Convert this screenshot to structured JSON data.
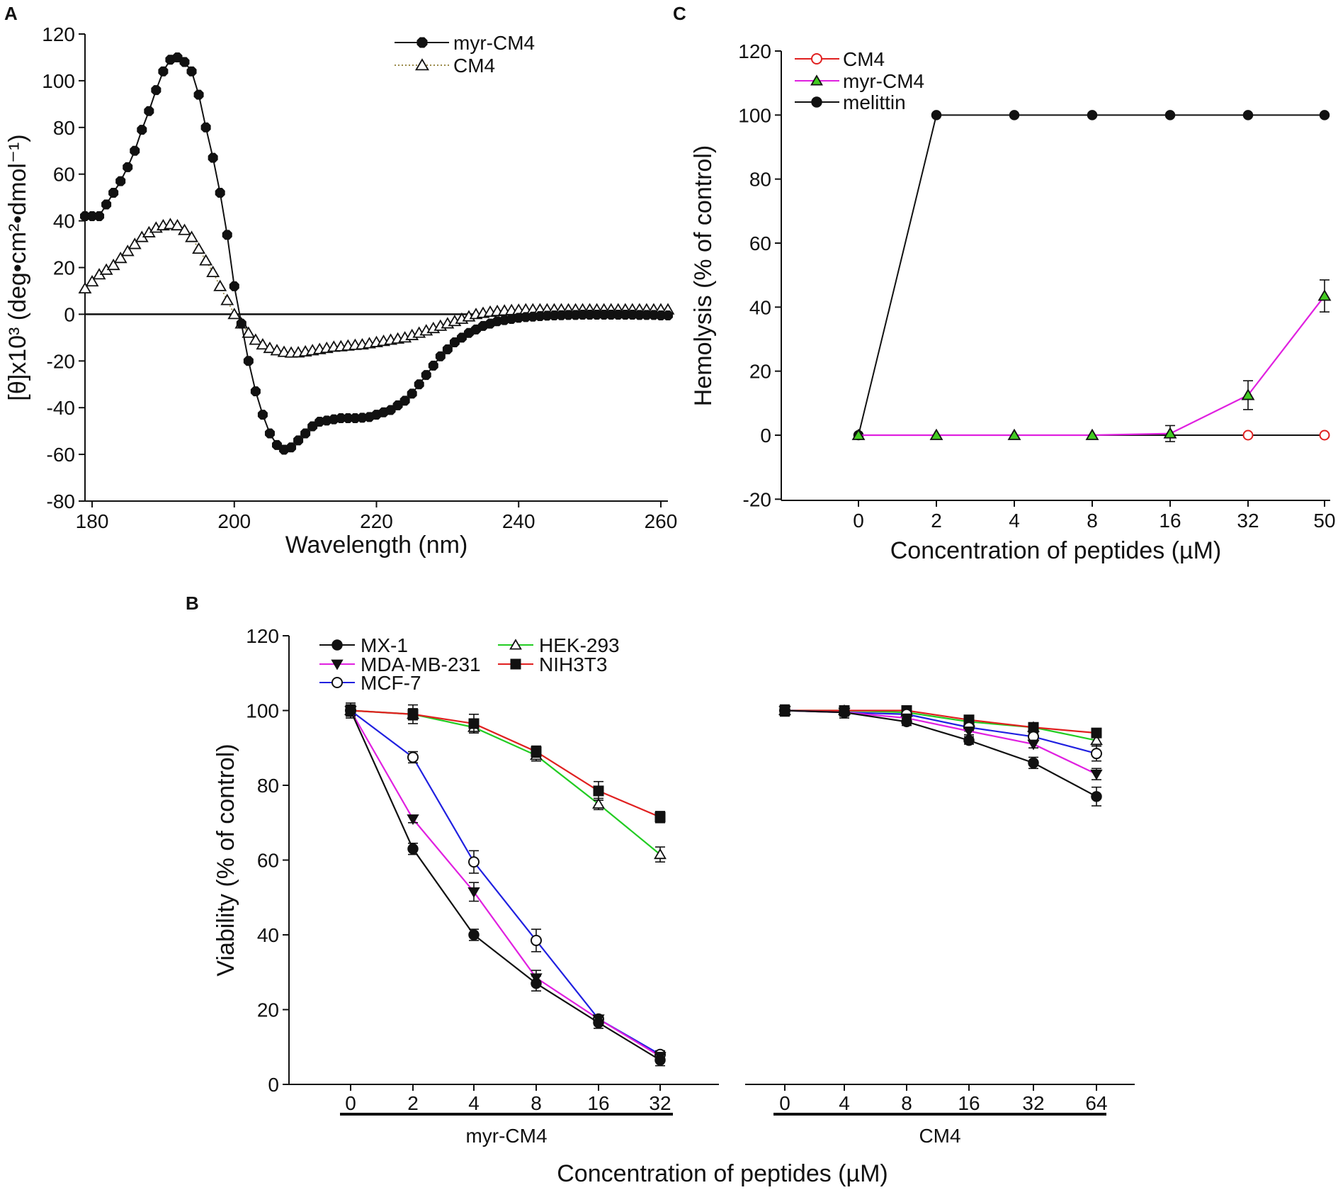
{
  "chart_data": [
    {
      "panel": "A",
      "type": "line",
      "xlabel": "Wavelength (nm)",
      "ylabel": "[θ]x10³ (deg•cm²•dmol⁻¹)",
      "xlim": [
        179,
        261
      ],
      "ylim": [
        -80,
        120
      ],
      "xticks": [
        180,
        200,
        220,
        240,
        260
      ],
      "yticks": [
        -80,
        -60,
        -40,
        -20,
        0,
        20,
        40,
        60,
        80,
        100,
        120
      ],
      "zero_line": true,
      "legend_position": "top-right",
      "series": [
        {
          "name": "myr-CM4",
          "marker": "filled-octagon",
          "color": "#111111",
          "line_style": "solid",
          "x": [
            179,
            180,
            181,
            182,
            183,
            184,
            185,
            186,
            187,
            188,
            189,
            190,
            191,
            192,
            193,
            194,
            195,
            196,
            197,
            198,
            199,
            200,
            201,
            202,
            203,
            204,
            205,
            206,
            207,
            208,
            209,
            210,
            211,
            212,
            213,
            214,
            215,
            216,
            217,
            218,
            219,
            220,
            221,
            222,
            223,
            224,
            225,
            226,
            227,
            228,
            229,
            230,
            231,
            232,
            233,
            234,
            235,
            236,
            237,
            238,
            239,
            240,
            241,
            242,
            243,
            244,
            245,
            246,
            247,
            248,
            249,
            250,
            251,
            252,
            253,
            254,
            255,
            256,
            257,
            258,
            259,
            260,
            261
          ],
          "y": [
            42,
            42,
            42,
            47,
            52,
            57,
            63,
            70,
            79,
            87,
            96,
            104,
            109,
            110,
            108,
            104,
            94,
            80,
            67,
            52,
            34,
            12,
            -4,
            -20,
            -33,
            -43,
            -51,
            -56,
            -58,
            -57,
            -54,
            -51,
            -48,
            -46,
            -45.5,
            -45,
            -44.5,
            -44.5,
            -44.5,
            -44.3,
            -44,
            -43,
            -42,
            -41,
            -39,
            -37,
            -34,
            -30,
            -26,
            -22,
            -18,
            -15,
            -12,
            -10,
            -8,
            -6.5,
            -5,
            -4,
            -3,
            -2.5,
            -2,
            -1.5,
            -1.2,
            -1,
            -0.8,
            -0.6,
            -0.5,
            -0.4,
            -0.3,
            -0.3,
            -0.2,
            -0.2,
            -0.2,
            -0.2,
            -0.2,
            -0.2,
            -0.2,
            -0.2,
            -0.3,
            -0.3,
            -0.3,
            -0.5,
            -0.5
          ]
        },
        {
          "name": "CM4",
          "marker": "open-triangle",
          "color": "#111111",
          "line_style": "dotted",
          "line_color": "#9a8a4a",
          "x": [
            179,
            180,
            181,
            182,
            183,
            184,
            185,
            186,
            187,
            188,
            189,
            190,
            191,
            192,
            193,
            194,
            195,
            196,
            197,
            198,
            199,
            200,
            201,
            202,
            203,
            204,
            205,
            206,
            207,
            208,
            209,
            210,
            211,
            212,
            213,
            214,
            215,
            216,
            217,
            218,
            219,
            220,
            221,
            222,
            223,
            224,
            225,
            226,
            227,
            228,
            229,
            230,
            231,
            232,
            233,
            234,
            235,
            236,
            237,
            238,
            239,
            240,
            241,
            242,
            243,
            244,
            245,
            246,
            247,
            248,
            249,
            250,
            251,
            252,
            253,
            254,
            255,
            256,
            257,
            258,
            259,
            260,
            261
          ],
          "y": [
            11,
            14,
            17,
            19,
            21,
            24,
            27,
            30,
            33,
            35,
            37,
            38,
            38.5,
            38,
            36,
            33,
            28,
            23,
            18,
            12,
            6,
            0,
            -4,
            -8,
            -11,
            -13,
            -14.5,
            -15.5,
            -16.2,
            -16.5,
            -16.4,
            -16,
            -15.5,
            -15,
            -14.5,
            -14,
            -13.8,
            -13.5,
            -13.2,
            -13,
            -12.5,
            -12,
            -11.5,
            -11,
            -10.5,
            -10,
            -9,
            -8,
            -7,
            -6,
            -5,
            -4,
            -3,
            -2,
            -1,
            0,
            0.5,
            1,
            1.3,
            1.5,
            1.7,
            1.8,
            2,
            2,
            2,
            2,
            2,
            2,
            2,
            2,
            2,
            2,
            2,
            2,
            2,
            2,
            2,
            2,
            2,
            2,
            2,
            2,
            2
          ]
        }
      ]
    },
    {
      "panel": "C",
      "type": "line",
      "xlabel": "Concentration of peptides (µM)",
      "ylabel": "Hemolysis (% of control)",
      "categories": [
        "0",
        "2",
        "4",
        "8",
        "16",
        "32",
        "50"
      ],
      "ylim": [
        -20,
        120
      ],
      "yticks": [
        -20,
        0,
        20,
        40,
        60,
        80,
        100,
        120
      ],
      "legend_position": "top-left",
      "series": [
        {
          "name": "CM4",
          "marker": "open-circle",
          "color": "#e02020",
          "line_color": "#111111",
          "values": [
            0,
            0,
            0,
            0,
            0,
            0,
            0
          ],
          "errors": [
            0,
            0,
            0,
            0,
            0,
            0,
            0
          ]
        },
        {
          "name": "myr-CM4",
          "marker": "filled-triangle",
          "color": "#e020e0",
          "marker_fill": "#44cc22",
          "values": [
            0,
            0,
            0,
            0,
            0.5,
            12.5,
            43.5
          ],
          "errors": [
            0,
            0,
            0,
            0,
            2.5,
            4.5,
            5
          ]
        },
        {
          "name": "melittin",
          "marker": "filled-circle",
          "color": "#111111",
          "values": [
            0,
            100,
            100,
            100,
            100,
            100,
            100
          ],
          "errors": [
            0,
            0,
            0,
            0,
            0,
            0,
            0
          ]
        }
      ]
    },
    {
      "panel": "B",
      "type": "line",
      "xlabel": "Concentration of peptides (µM)",
      "ylabel": "Viability (% of control)",
      "ylim": [
        0,
        120
      ],
      "yticks": [
        0,
        20,
        40,
        60,
        80,
        100,
        120
      ],
      "legend_position": "top-left",
      "groups": [
        {
          "label": "myr-CM4",
          "categories": [
            "0",
            "2",
            "4",
            "8",
            "16",
            "32"
          ]
        },
        {
          "label": "CM4",
          "categories": [
            "0",
            "4",
            "8",
            "16",
            "32",
            "64"
          ]
        }
      ],
      "series": [
        {
          "name": "MX-1",
          "marker": "filled-circle",
          "color": "#111111",
          "group_values": [
            [
              100,
              63,
              40,
              27,
              16.5,
              6.5
            ],
            [
              100,
              99.5,
              97,
              92,
              86,
              77
            ]
          ],
          "group_errors": [
            [
              2,
              1.5,
              1.5,
              2,
              1.5,
              1.5
            ],
            [
              1.5,
              1.5,
              1,
              1,
              1.5,
              2.5
            ]
          ]
        },
        {
          "name": "MDA-MB-231",
          "marker": "filled-down-triangle",
          "color": "#e020e0",
          "group_values": [
            [
              100,
              71,
              51.5,
              28.5,
              17.5,
              7.5
            ],
            [
              100,
              99.5,
              98,
              94.5,
              91,
              83
            ]
          ],
          "group_errors": [
            [
              1.5,
              1,
              2.5,
              2,
              1,
              1
            ],
            [
              1,
              1,
              1,
              1,
              1,
              1.5
            ]
          ]
        },
        {
          "name": "MCF-7",
          "marker": "open-circle",
          "color": "#2020e0",
          "group_values": [
            [
              100,
              87.5,
              59.5,
              38.5,
              17.5,
              8
            ],
            [
              100,
              99.5,
              99,
              95.5,
              93,
              88.5
            ]
          ],
          "group_errors": [
            [
              1.5,
              1.5,
              3,
              3,
              1,
              1
            ],
            [
              1,
              1,
              1,
              1,
              1,
              2
            ]
          ]
        },
        {
          "name": "HEK-293",
          "marker": "open-triangle",
          "color": "#22cc22",
          "group_values": [
            [
              100,
              99,
              95.5,
              88,
              75,
              61.5
            ],
            [
              100,
              100,
              99.5,
              97,
              95.5,
              92
            ]
          ],
          "group_errors": [
            [
              1.5,
              1.5,
              1.5,
              1.5,
              1.5,
              2
            ],
            [
              1,
              1,
              1,
              1,
              1,
              1.5
            ]
          ]
        },
        {
          "name": "NIH3T3",
          "marker": "filled-square",
          "color": "#e02020",
          "group_values": [
            [
              100,
              99,
              96.5,
              89,
              78.5,
              71.5
            ],
            [
              100,
              100,
              100,
              97.5,
              95.5,
              94
            ]
          ],
          "group_errors": [
            [
              1.5,
              2.5,
              2.5,
              1.5,
              2.5,
              1.5
            ],
            [
              1,
              1,
              1,
              1,
              1,
              1
            ]
          ]
        }
      ]
    }
  ]
}
